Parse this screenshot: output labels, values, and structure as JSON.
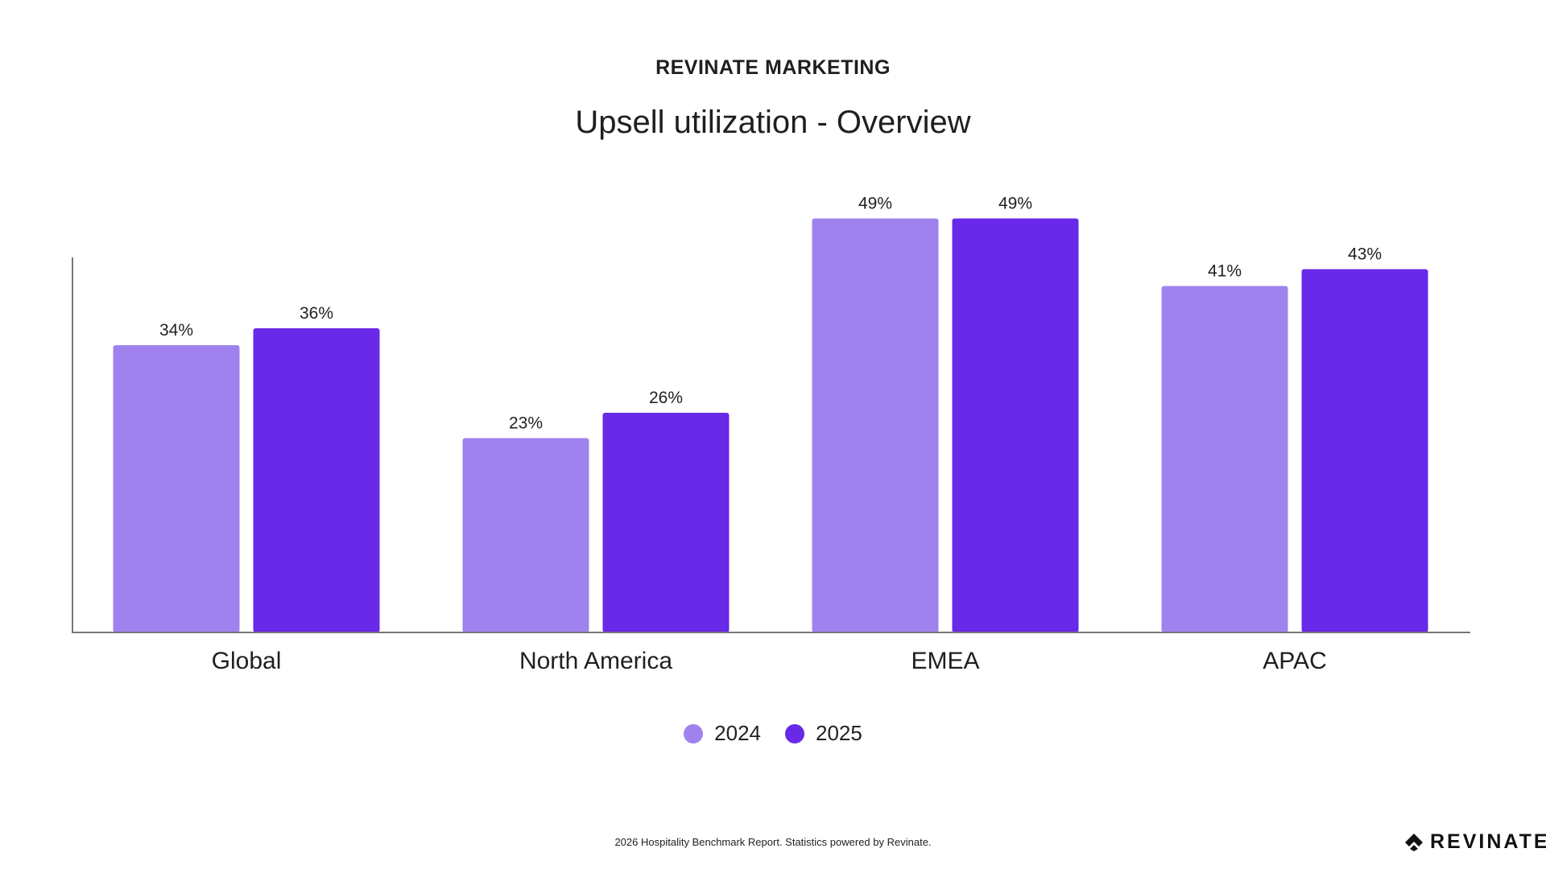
{
  "header": {
    "eyebrow": "REVINATE MARKETING",
    "title": "Upsell utilization - Overview"
  },
  "footer": {
    "text": "2026 Hospitality Benchmark Report. Statistics powered by Revinate.",
    "logo_text": "REVINATE"
  },
  "colors": {
    "series_2024": "#9f82ee",
    "series_2025": "#6829e9",
    "axis": "#777777"
  },
  "chart_data": {
    "type": "bar",
    "title": "Upsell utilization - Overview",
    "categories": [
      "Global",
      "North America",
      "EMEA",
      "APAC"
    ],
    "series": [
      {
        "name": "2024",
        "values": [
          34,
          23,
          49,
          41
        ],
        "labels": [
          "34%",
          "23%",
          "49%",
          "41%"
        ],
        "color": "#9f82ee"
      },
      {
        "name": "2025",
        "values": [
          36,
          26,
          49,
          43
        ],
        "labels": [
          "36%",
          "26%",
          "49%",
          "43%"
        ],
        "color": "#6829e9"
      }
    ],
    "ylim": [
      0,
      60
    ],
    "value_unit": "%",
    "grid": false,
    "legend_position": "bottom-center"
  }
}
